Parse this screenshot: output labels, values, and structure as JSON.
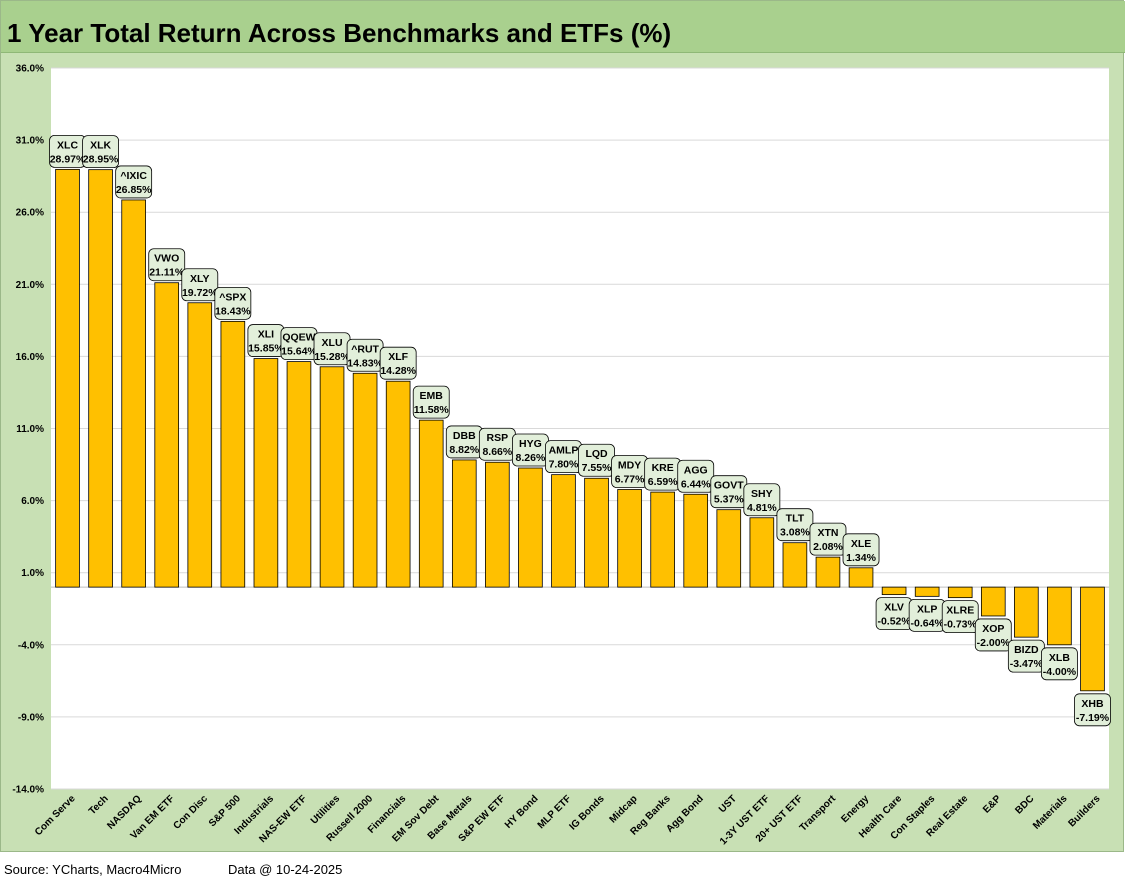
{
  "title": "1 Year Total Return Across Benchmarks and ETFs (%)",
  "footer": {
    "source": "Source: YCharts, Macro4Micro",
    "date": "Data @ 10-24-2025"
  },
  "colors": {
    "bar": "#ffc000",
    "plot_bg": "#ffffff",
    "frame_bg": "#c8e0b4",
    "title_bg": "#a9d08e",
    "label_bg": "#e2efda",
    "grid": "#d9d9d9"
  },
  "chart_data": {
    "type": "bar",
    "title": "1 Year Total Return Across Benchmarks and ETFs (%)",
    "ylim": [
      -14,
      36
    ],
    "yticks": [
      "36.0%",
      "31.0%",
      "26.0%",
      "21.0%",
      "16.0%",
      "11.0%",
      "6.0%",
      "1.0%",
      "-4.0%",
      "-9.0%",
      "-14.0%"
    ],
    "ytick_values": [
      36,
      31,
      26,
      21,
      16,
      11,
      6,
      1,
      -4,
      -9,
      -14
    ],
    "baseline": 0,
    "grid": true,
    "legend": "none",
    "categories": [
      "Com Serve",
      "Tech",
      "NASDAQ",
      "Van EM ETF",
      "Con Disc",
      "S&P 500",
      "Industrials",
      "NAS-EW ETF",
      "Utilities",
      "Russell 2000",
      "Financials",
      "EM Sov Debt",
      "Base Metals",
      "S&P EW ETF",
      "HY Bond",
      "MLP ETF",
      "IG Bonds",
      "Midcap",
      "Reg Banks",
      "Agg Bond",
      "UST",
      "1-3Y UST ETF",
      "20+ UST ETF",
      "Transport",
      "Energy",
      "Health Care",
      "Con Staples",
      "Real Estate",
      "E&P",
      "BDC",
      "Materials",
      "Builders"
    ],
    "values": [
      28.97,
      28.95,
      26.85,
      21.11,
      19.72,
      18.43,
      15.85,
      15.64,
      15.28,
      14.83,
      14.28,
      11.58,
      8.82,
      8.66,
      8.26,
      7.8,
      7.55,
      6.77,
      6.59,
      6.44,
      5.37,
      4.81,
      3.08,
      2.08,
      1.34,
      -0.52,
      -0.64,
      -0.73,
      -2.0,
      -3.47,
      -4.0,
      -7.19
    ],
    "tickers": [
      "XLC",
      "XLK",
      "^IXIC",
      "VWO",
      "XLY",
      "^SPX",
      "XLI",
      "QQEW",
      "XLU",
      "^RUT",
      "XLF",
      "EMB",
      "DBB",
      "RSP",
      "HYG",
      "AMLP",
      "LQD",
      "MDY",
      "KRE",
      "AGG",
      "GOVT",
      "SHY",
      "TLT",
      "XTN",
      "XLE",
      "XLV",
      "XLP",
      "XLRE",
      "XOP",
      "BIZD",
      "XLB",
      "XHB"
    ],
    "data_labels": [
      "28.97%",
      "28.95%",
      "26.85%",
      "21.11%",
      "19.72%",
      "18.43%",
      "15.85%",
      "15.64%",
      "15.28%",
      "14.83%",
      "14.28%",
      "11.58%",
      "8.82%",
      "8.66%",
      "8.26%",
      "7.80%",
      "7.55%",
      "6.77%",
      "6.59%",
      "6.44%",
      "5.37%",
      "4.81%",
      "3.08%",
      "2.08%",
      "1.34%",
      "-0.52%",
      "-0.64%",
      "-0.73%",
      "-2.00%",
      "-3.47%",
      "-4.00%",
      "-7.19%"
    ]
  }
}
